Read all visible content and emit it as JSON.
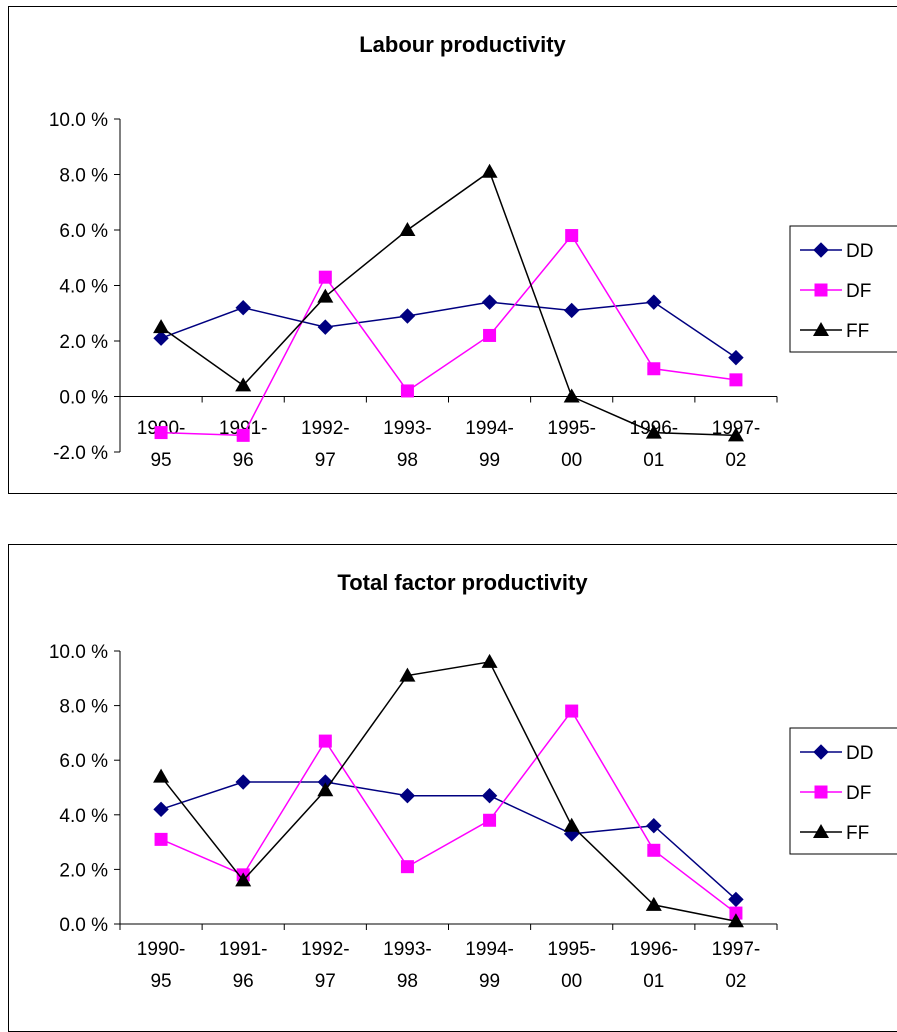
{
  "chart_data": [
    {
      "type": "line",
      "title": "Labour productivity",
      "categories": [
        "1990-95",
        "1991-96",
        "1992-97",
        "1993-98",
        "1994-99",
        "1995-00",
        "1996-01",
        "1997-02"
      ],
      "category_lines": [
        [
          "1990-",
          "95"
        ],
        [
          "1991-",
          "96"
        ],
        [
          "1992-",
          "97"
        ],
        [
          "1993-",
          "98"
        ],
        [
          "1994-",
          "99"
        ],
        [
          "1995-",
          "00"
        ],
        [
          "1996-",
          "01"
        ],
        [
          "1997-",
          "02"
        ]
      ],
      "yticks": [
        "-2.0 %",
        "0.0 %",
        "2.0 %",
        "4.0 %",
        "6.0 %",
        "8.0 %",
        "10.0 %"
      ],
      "ylim": [
        -2,
        10
      ],
      "grid": false,
      "legend_position": "right",
      "series": [
        {
          "name": "DD",
          "color": "#000080",
          "marker": "diamond",
          "values": [
            2.1,
            3.2,
            2.5,
            2.9,
            3.4,
            3.1,
            3.4,
            1.4
          ]
        },
        {
          "name": "DF",
          "color": "#ff00ff",
          "marker": "square",
          "values": [
            -1.3,
            -1.4,
            4.3,
            0.2,
            2.2,
            5.8,
            1.0,
            0.6
          ]
        },
        {
          "name": "FF",
          "color": "#000000",
          "marker": "triangle",
          "values": [
            2.5,
            0.4,
            3.6,
            6.0,
            8.1,
            0.0,
            -1.3,
            -1.4
          ]
        }
      ]
    },
    {
      "type": "line",
      "title": "Total factor productivity",
      "categories": [
        "1990-95",
        "1991-96",
        "1992-97",
        "1993-98",
        "1994-99",
        "1995-00",
        "1996-01",
        "1997-02"
      ],
      "category_lines": [
        [
          "1990-",
          "95"
        ],
        [
          "1991-",
          "96"
        ],
        [
          "1992-",
          "97"
        ],
        [
          "1993-",
          "98"
        ],
        [
          "1994-",
          "99"
        ],
        [
          "1995-",
          "00"
        ],
        [
          "1996-",
          "01"
        ],
        [
          "1997-",
          "02"
        ]
      ],
      "yticks": [
        "0.0 %",
        "2.0 %",
        "4.0 %",
        "6.0 %",
        "8.0 %",
        "10.0 %"
      ],
      "ylim": [
        0,
        10
      ],
      "grid": false,
      "legend_position": "right",
      "series": [
        {
          "name": "DD",
          "color": "#000080",
          "marker": "diamond",
          "values": [
            4.2,
            5.2,
            5.2,
            4.7,
            4.7,
            3.3,
            3.6,
            0.9
          ]
        },
        {
          "name": "DF",
          "color": "#ff00ff",
          "marker": "square",
          "values": [
            3.1,
            1.8,
            6.7,
            2.1,
            3.8,
            7.8,
            2.7,
            0.4
          ]
        },
        {
          "name": "FF",
          "color": "#000000",
          "marker": "triangle",
          "values": [
            5.4,
            1.6,
            4.9,
            9.1,
            9.6,
            3.6,
            0.7,
            0.1
          ]
        }
      ]
    }
  ]
}
